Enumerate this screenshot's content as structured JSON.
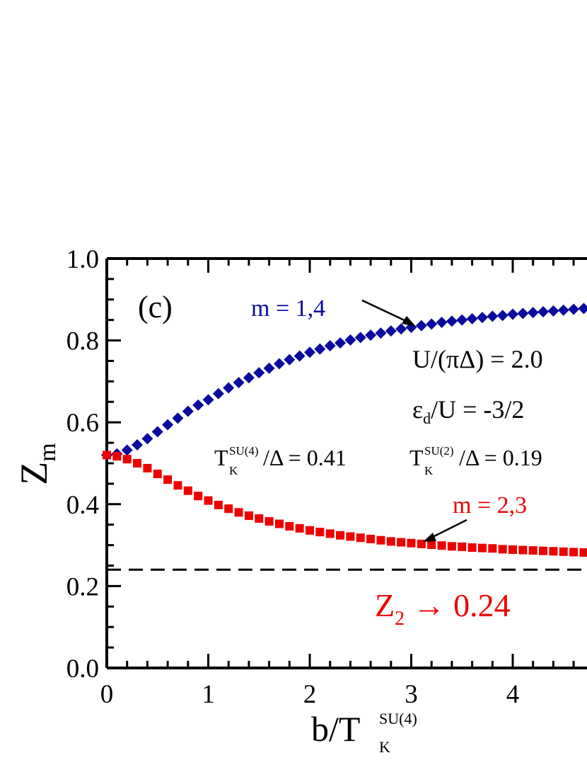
{
  "chart_data": {
    "type": "scatter",
    "panel_label": "(c)",
    "xlabel": {
      "main": "b/T",
      "sub": "K",
      "sup": "SU(4)"
    },
    "ylabel": {
      "main": "Z",
      "sub": "m"
    },
    "xlim": [
      0,
      4.8
    ],
    "ylim": [
      0.0,
      1.0
    ],
    "x_ticks": [
      0,
      1,
      2,
      3,
      4
    ],
    "x_tick_labels": [
      "0",
      "1",
      "2",
      "3",
      "4"
    ],
    "y_ticks": [
      0.0,
      0.2,
      0.4,
      0.6,
      0.8,
      1.0
    ],
    "y_tick_labels": [
      "0.0",
      "0.2",
      "0.4",
      "0.6",
      "0.8",
      "1.0"
    ],
    "grid": false,
    "colors": {
      "series_1": "#0a0a9e",
      "series_2": "#ee0000",
      "axis": "#000000",
      "reference": "#000000"
    },
    "series": [
      {
        "label": "m = 1,4",
        "marker": "diamond",
        "color": "#0a0a9e",
        "x": [
          0,
          0.1,
          0.2,
          0.3,
          0.4,
          0.5,
          0.6,
          0.7,
          0.8,
          0.9,
          1.0,
          1.1,
          1.2,
          1.3,
          1.4,
          1.5,
          1.6,
          1.7,
          1.8,
          1.9,
          2.0,
          2.1,
          2.2,
          2.3,
          2.4,
          2.5,
          2.6,
          2.7,
          2.8,
          2.9,
          3.0,
          3.1,
          3.2,
          3.3,
          3.4,
          3.5,
          3.6,
          3.7,
          3.8,
          3.9,
          4.0,
          4.1,
          4.2,
          4.3,
          4.4,
          4.5,
          4.6,
          4.7,
          4.8
        ],
        "y": [
          0.52,
          0.523,
          0.532,
          0.545,
          0.56,
          0.577,
          0.594,
          0.61,
          0.627,
          0.642,
          0.655,
          0.67,
          0.684,
          0.697,
          0.709,
          0.721,
          0.732,
          0.743,
          0.753,
          0.762,
          0.771,
          0.779,
          0.787,
          0.794,
          0.801,
          0.807,
          0.813,
          0.818,
          0.823,
          0.828,
          0.832,
          0.836,
          0.84,
          0.844,
          0.847,
          0.85,
          0.853,
          0.856,
          0.859,
          0.861,
          0.864,
          0.866,
          0.868,
          0.87,
          0.872,
          0.874,
          0.876,
          0.878,
          0.88
        ]
      },
      {
        "label": "m = 2,3",
        "marker": "square",
        "color": "#ee0000",
        "x": [
          0,
          0.1,
          0.2,
          0.3,
          0.4,
          0.5,
          0.6,
          0.7,
          0.8,
          0.9,
          1.0,
          1.1,
          1.2,
          1.3,
          1.4,
          1.5,
          1.6,
          1.7,
          1.8,
          1.9,
          2.0,
          2.1,
          2.2,
          2.3,
          2.4,
          2.5,
          2.6,
          2.7,
          2.8,
          2.9,
          3.0,
          3.1,
          3.2,
          3.3,
          3.4,
          3.5,
          3.6,
          3.7,
          3.8,
          3.9,
          4.0,
          4.1,
          4.2,
          4.3,
          4.4,
          4.5,
          4.6,
          4.7,
          4.8
        ],
        "y": [
          0.52,
          0.517,
          0.51,
          0.5,
          0.488,
          0.474,
          0.46,
          0.446,
          0.433,
          0.42,
          0.409,
          0.398,
          0.389,
          0.38,
          0.372,
          0.365,
          0.358,
          0.352,
          0.346,
          0.341,
          0.336,
          0.332,
          0.328,
          0.324,
          0.321,
          0.318,
          0.315,
          0.312,
          0.309,
          0.307,
          0.305,
          0.303,
          0.301,
          0.299,
          0.297,
          0.296,
          0.294,
          0.293,
          0.292,
          0.29,
          0.289,
          0.288,
          0.287,
          0.286,
          0.285,
          0.284,
          0.283,
          0.282,
          0.281
        ]
      }
    ],
    "reference_line": {
      "y": 0.24,
      "style": "dashed"
    },
    "annotations": {
      "params_U": "U/(πΔ) = 2.0",
      "params_ed": {
        "main": "ε",
        "sub": "d",
        "rest": "/U = -3/2"
      },
      "tk4": {
        "main": "T",
        "sup": "SU(4)",
        "sub": "K",
        "rest": "/Δ = 0.41"
      },
      "tk2": {
        "main": "T",
        "sup": "SU(2)",
        "sub": "K",
        "rest": "/Δ = 0.19"
      },
      "limit": {
        "main": "Z",
        "sub": "2",
        "rest": " → 0.24"
      }
    }
  }
}
